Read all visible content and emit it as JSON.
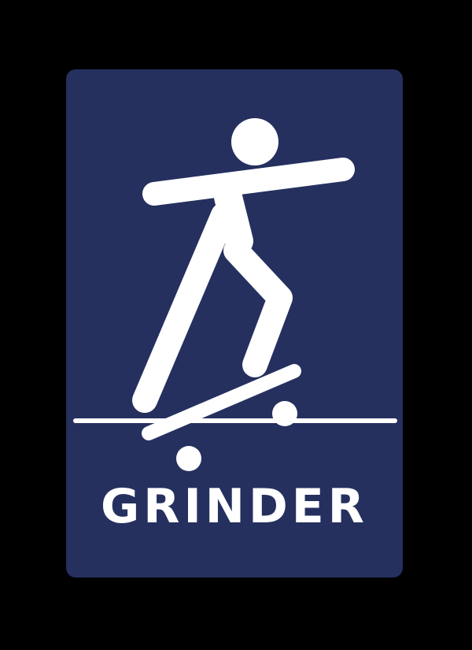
{
  "sign": {
    "label": "GRINDER",
    "pictogram": "skateboarder-grinding-rail-icon",
    "colors": {
      "background": "#000000",
      "panel": "#25305f",
      "foreground": "#ffffff"
    }
  }
}
